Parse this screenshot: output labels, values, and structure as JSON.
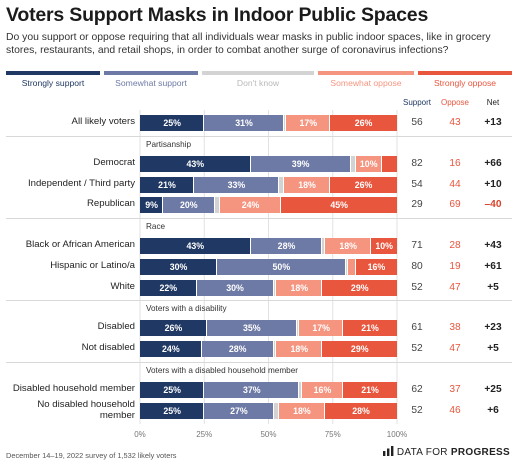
{
  "title": "Voters Support Masks in Indoor Public Spaces",
  "subtitle": "Do you support or oppose requiring that all individuals wear masks in public indoor spaces, like in grocery stores, restaurants, and retail shops, in order to combat another surge of coronavirus infections?",
  "footnote": "December 14–19, 2022 survey of 1,532 likely voters",
  "brand": {
    "prefix": "DATA FOR",
    "bold": "PROGRESS"
  },
  "columns": {
    "support": "Support",
    "oppose": "Oppose",
    "net": "Net"
  },
  "colors": {
    "strongly_support": "#1f3864",
    "somewhat_support": "#6e7aa6",
    "dont_know": "#d3d3d3",
    "somewhat_oppose": "#f59580",
    "strongly_oppose": "#e8563e",
    "net_negative": "#d9442b"
  },
  "chart_data": {
    "type": "bar",
    "stacked": true,
    "orientation": "horizontal",
    "xlim": [
      0,
      100
    ],
    "x_ticks": [
      "0%",
      "25%",
      "50%",
      "75%",
      "100%"
    ],
    "legend": [
      "Strongly support",
      "Somewhat support",
      "Don't know",
      "Somewhat oppose",
      "Strongly oppose"
    ],
    "legend_position": "top",
    "groups": [
      {
        "name": "",
        "rows": [
          {
            "label": "All likely voters",
            "values": [
              25,
              31,
              1,
              17,
              26
            ],
            "support": "56",
            "oppose": "43",
            "net": "+13"
          }
        ]
      },
      {
        "name": "Partisanship",
        "rows": [
          {
            "label": "Democrat",
            "values": [
              43,
              39,
              2,
              10,
              6
            ],
            "support": "82",
            "oppose": "16",
            "net": "+66"
          },
          {
            "label": "Independent / Third party",
            "values": [
              21,
              33,
              2,
              18,
              26
            ],
            "support": "54",
            "oppose": "44",
            "net": "+10"
          },
          {
            "label": "Republican",
            "values": [
              9,
              20,
              2,
              24,
              45
            ],
            "support": "29",
            "oppose": "69",
            "net": "–40"
          }
        ]
      },
      {
        "name": "Race",
        "rows": [
          {
            "label": "Black or African American",
            "values": [
              43,
              28,
              1,
              18,
              10
            ],
            "support": "71",
            "oppose": "28",
            "net": "+43"
          },
          {
            "label": "Hispanic or Latino/a",
            "values": [
              30,
              50,
              1,
              3,
              16
            ],
            "support": "80",
            "oppose": "19",
            "net": "+61"
          },
          {
            "label": "White",
            "values": [
              22,
              30,
              1,
              18,
              29
            ],
            "support": "52",
            "oppose": "47",
            "net": "+5"
          }
        ]
      },
      {
        "name": "Voters with a disability",
        "rows": [
          {
            "label": "Disabled",
            "values": [
              26,
              35,
              1,
              17,
              21
            ],
            "support": "61",
            "oppose": "38",
            "net": "+23"
          },
          {
            "label": "Not disabled",
            "values": [
              24,
              28,
              1,
              18,
              29
            ],
            "support": "52",
            "oppose": "47",
            "net": "+5"
          }
        ]
      },
      {
        "name": "Voters with a disabled household member",
        "rows": [
          {
            "label": "Disabled household member",
            "values": [
              25,
              37,
              1,
              16,
              21
            ],
            "support": "62",
            "oppose": "37",
            "net": "+25"
          },
          {
            "label": "No disabled household member",
            "values": [
              25,
              27,
              2,
              18,
              28
            ],
            "support": "52",
            "oppose": "46",
            "net": "+6"
          }
        ]
      }
    ]
  }
}
